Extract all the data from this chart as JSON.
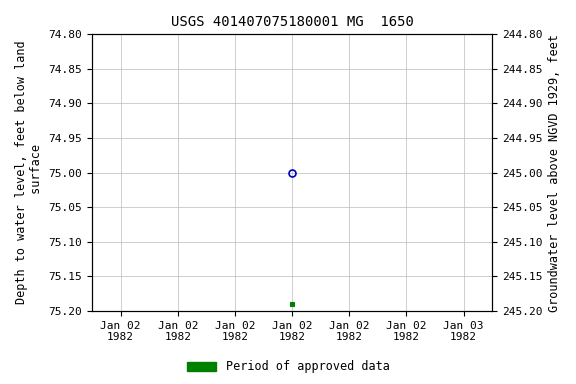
{
  "title": "USGS 401407075180001 MG  1650",
  "ylabel_left": "Depth to water level, feet below land\n surface",
  "ylabel_right": "Groundwater level above NGVD 1929, feet",
  "ylim_left": [
    74.8,
    75.2
  ],
  "ylim_right": [
    245.2,
    244.8
  ],
  "yticks_left": [
    74.8,
    74.85,
    74.9,
    74.95,
    75.0,
    75.05,
    75.1,
    75.15,
    75.2
  ],
  "yticks_right": [
    245.2,
    245.15,
    245.1,
    245.05,
    245.0,
    244.95,
    244.9,
    244.85,
    244.8
  ],
  "yticks_right_labels": [
    "245.20",
    "245.15",
    "245.10",
    "245.05",
    "245.00",
    "244.95",
    "244.90",
    "244.85",
    "244.80"
  ],
  "point_open_x": 3,
  "point_open_value": 75.0,
  "point_filled_x": 3,
  "point_filled_value": 75.19,
  "point_open_color": "#0000bb",
  "point_filled_color": "#008000",
  "legend_label": "Period of approved data",
  "legend_color": "#008000",
  "bg_color": "#ffffff",
  "grid_color": "#bbbbbb",
  "font_family": "monospace",
  "title_fontsize": 10,
  "label_fontsize": 8.5,
  "tick_fontsize": 8,
  "x_tick_labels": [
    "Jan 02\n1982",
    "Jan 02\n1982",
    "Jan 02\n1982",
    "Jan 02\n1982",
    "Jan 02\n1982",
    "Jan 02\n1982",
    "Jan 03\n1982"
  ],
  "x_num_ticks": 7,
  "x_range": [
    0,
    6
  ]
}
